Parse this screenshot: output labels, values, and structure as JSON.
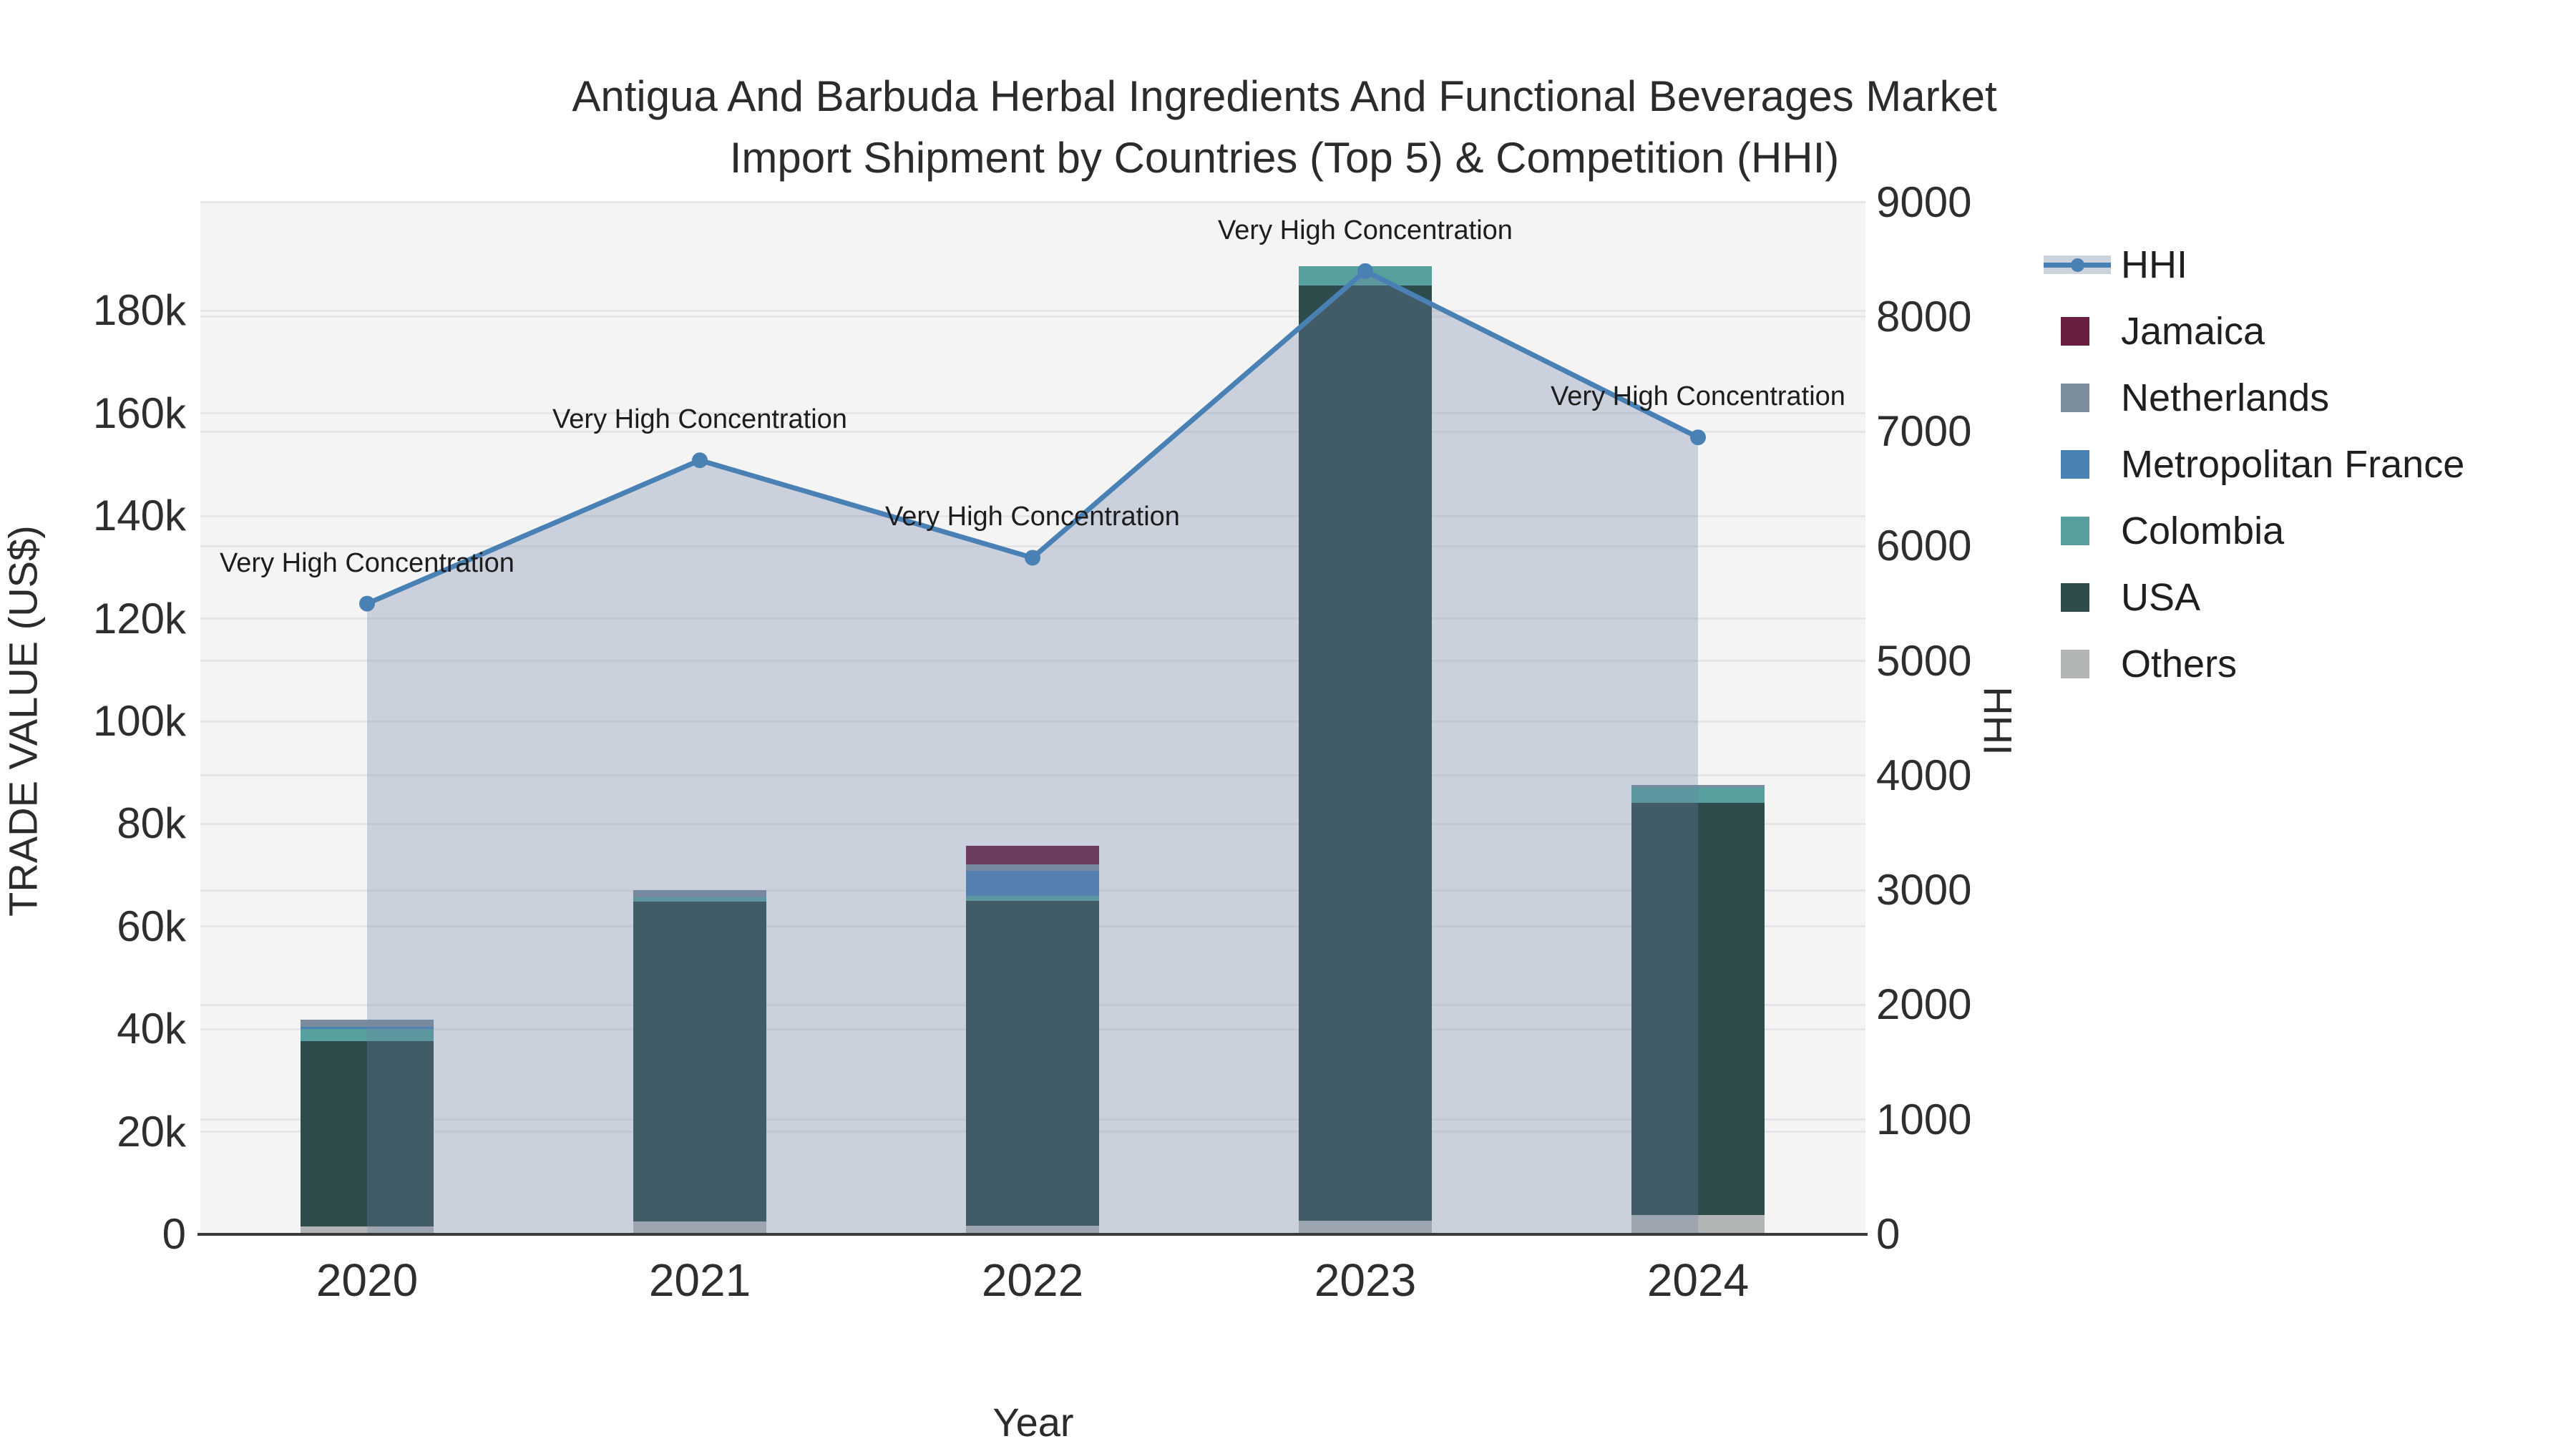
{
  "title": {
    "line1": "Antigua And Barbuda Herbal Ingredients And Functional Beverages Market",
    "line2": "Import Shipment by Countries (Top 5) & Competition (HHI)"
  },
  "axes": {
    "x": {
      "title": "Year",
      "categories": [
        "2020",
        "2021",
        "2022",
        "2023",
        "2024"
      ]
    },
    "y_left": {
      "title": "TRADE VALUE (US$)",
      "ticks": [
        {
          "label": "0",
          "value": 0
        },
        {
          "label": "20k",
          "value": 20000
        },
        {
          "label": "40k",
          "value": 40000
        },
        {
          "label": "60k",
          "value": 60000
        },
        {
          "label": "80k",
          "value": 80000
        },
        {
          "label": "100k",
          "value": 100000
        },
        {
          "label": "120k",
          "value": 120000
        },
        {
          "label": "140k",
          "value": 140000
        },
        {
          "label": "160k",
          "value": 160000
        },
        {
          "label": "180k",
          "value": 180000
        }
      ]
    },
    "y_right": {
      "title": "HHI",
      "ticks": [
        {
          "label": "0",
          "value": 0
        },
        {
          "label": "1000",
          "value": 1000
        },
        {
          "label": "2000",
          "value": 2000
        },
        {
          "label": "3000",
          "value": 3000
        },
        {
          "label": "4000",
          "value": 4000
        },
        {
          "label": "5000",
          "value": 5000
        },
        {
          "label": "6000",
          "value": 6000
        },
        {
          "label": "7000",
          "value": 7000
        },
        {
          "label": "8000",
          "value": 8000
        },
        {
          "label": "9000",
          "value": 9000
        }
      ]
    }
  },
  "legend": [
    {
      "name": "HHI",
      "type": "line",
      "color": "#4a81b5"
    },
    {
      "name": "Jamaica",
      "type": "swatch",
      "color": "#6b1f40"
    },
    {
      "name": "Netherlands",
      "type": "swatch",
      "color": "#7b8d9d"
    },
    {
      "name": "Metropolitan France",
      "type": "swatch",
      "color": "#4a82b6"
    },
    {
      "name": "Colombia",
      "type": "swatch",
      "color": "#58a09e"
    },
    {
      "name": "USA",
      "type": "swatch",
      "color": "#2e4c4c"
    },
    {
      "name": "Others",
      "type": "swatch",
      "color": "#b2b5b6"
    }
  ],
  "chart_data": {
    "type": "combo: stacked bar (left axis, Trade Value US$) + line (right axis, HHI)",
    "categories": [
      "2020",
      "2021",
      "2022",
      "2023",
      "2024"
    ],
    "bar_unit": "US$",
    "y_left_range": [
      0,
      201000
    ],
    "y_right_range": [
      0,
      9000
    ],
    "grid": "both axes, horizontal gridlines on",
    "legend_position": "right",
    "bar_series_bottom_to_top": [
      {
        "name": "Others",
        "color": "#b2b5b6",
        "values": [
          1600,
          2500,
          1700,
          2600,
          3800
        ]
      },
      {
        "name": "USA",
        "color": "#2e4c4c",
        "values": [
          36100,
          62400,
          63300,
          182400,
          80300
        ]
      },
      {
        "name": "Colombia",
        "color": "#58a09e",
        "values": [
          2300,
          800,
          900,
          3700,
          3100
        ]
      },
      {
        "name": "Metropolitan France",
        "color": "#4a82b6",
        "values": [
          400,
          0,
          5000,
          0,
          0
        ]
      },
      {
        "name": "Netherlands",
        "color": "#7b8d9d",
        "values": [
          1500,
          1400,
          1200,
          0,
          400
        ]
      },
      {
        "name": "Jamaica",
        "color": "#6b1f40",
        "values": [
          0,
          0,
          3600,
          0,
          0
        ]
      }
    ],
    "bar_totals": [
      41900,
      67100,
      75700,
      188700,
      87600
    ],
    "line_series": {
      "name": "HHI",
      "color": "#4a81b5",
      "fill_color": "rgba(108,130,162,0.30)",
      "values": [
        5500,
        6750,
        5900,
        8400,
        6950
      ]
    },
    "annotations": [
      {
        "text": "Very High Concentration",
        "category": "2020"
      },
      {
        "text": "Very High Concentration",
        "category": "2021"
      },
      {
        "text": "Very High Concentration",
        "category": "2022"
      },
      {
        "text": "Very High Concentration",
        "category": "2023"
      },
      {
        "text": "Very High Concentration",
        "category": "2024"
      }
    ]
  }
}
